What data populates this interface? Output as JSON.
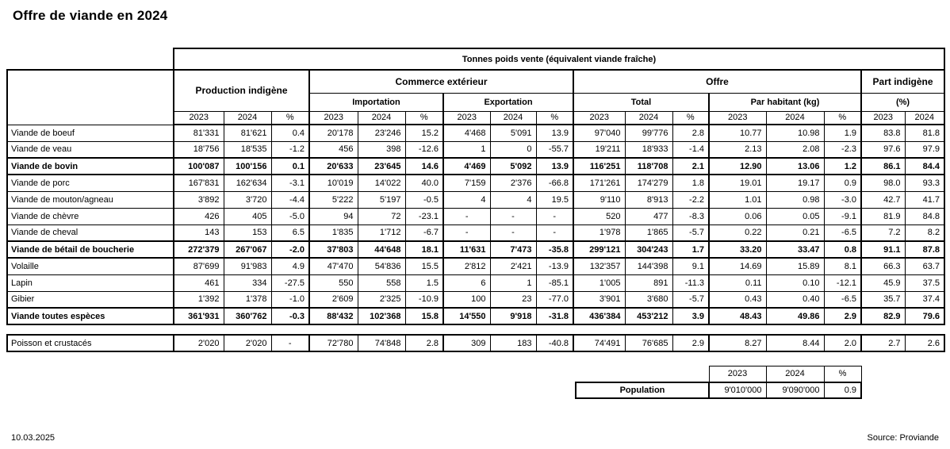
{
  "page": {
    "title": "Offre de viande en 2024",
    "footer_date": "10.03.2025",
    "footer_source": "Source: Proviande"
  },
  "table": {
    "unit_header": "Tonnes poids vente (équivalent viande fraîche)",
    "groups": {
      "production": "Production indigène",
      "commerce": "Commerce extérieur",
      "importation": "Importation",
      "exportation": "Exportation",
      "offre": "Offre",
      "total": "Total",
      "par_habitant": "Par habitant (kg)",
      "part_indigene": "Part indigène",
      "part_unit": "(%)"
    },
    "year_cols": [
      "2023",
      "2024",
      "%"
    ],
    "rows": [
      {
        "label": "Viande de boeuf",
        "bold": false,
        "values": [
          "81'331",
          "81'621",
          "0.4",
          "20'178",
          "23'246",
          "15.2",
          "4'468",
          "5'091",
          "13.9",
          "97'040",
          "99'776",
          "2.8",
          "10.77",
          "10.98",
          "1.9",
          "83.8",
          "81.8"
        ]
      },
      {
        "label": "Viande de veau",
        "bold": false,
        "values": [
          "18'756",
          "18'535",
          "-1.2",
          "456",
          "398",
          "-12.6",
          "1",
          "0",
          "-55.7",
          "19'211",
          "18'933",
          "-1.4",
          "2.13",
          "2.08",
          "-2.3",
          "97.6",
          "97.9"
        ]
      },
      {
        "label": "Viande de bovin",
        "bold": true,
        "values": [
          "100'087",
          "100'156",
          "0.1",
          "20'633",
          "23'645",
          "14.6",
          "4'469",
          "5'092",
          "13.9",
          "116'251",
          "118'708",
          "2.1",
          "12.90",
          "13.06",
          "1.2",
          "86.1",
          "84.4"
        ]
      },
      {
        "label": "Viande de porc",
        "bold": false,
        "values": [
          "167'831",
          "162'634",
          "-3.1",
          "10'019",
          "14'022",
          "40.0",
          "7'159",
          "2'376",
          "-66.8",
          "171'261",
          "174'279",
          "1.8",
          "19.01",
          "19.17",
          "0.9",
          "98.0",
          "93.3"
        ]
      },
      {
        "label": "Viande de mouton/agneau",
        "bold": false,
        "values": [
          "3'892",
          "3'720",
          "-4.4",
          "5'222",
          "5'197",
          "-0.5",
          "4",
          "4",
          "19.5",
          "9'110",
          "8'913",
          "-2.2",
          "1.01",
          "0.98",
          "-3.0",
          "42.7",
          "41.7"
        ]
      },
      {
        "label": "Viande de chèvre",
        "bold": false,
        "values": [
          "426",
          "405",
          "-5.0",
          "94",
          "72",
          "-23.1",
          "-",
          "-",
          "-",
          "520",
          "477",
          "-8.3",
          "0.06",
          "0.05",
          "-9.1",
          "81.9",
          "84.8"
        ]
      },
      {
        "label": "Viande de cheval",
        "bold": false,
        "values": [
          "143",
          "153",
          "6.5",
          "1'835",
          "1'712",
          "-6.7",
          "-",
          "-",
          "-",
          "1'978",
          "1'865",
          "-5.7",
          "0.22",
          "0.21",
          "-6.5",
          "7.2",
          "8.2"
        ]
      },
      {
        "label": "Viande de bétail de boucherie",
        "bold": true,
        "values": [
          "272'379",
          "267'067",
          "-2.0",
          "37'803",
          "44'648",
          "18.1",
          "11'631",
          "7'473",
          "-35.8",
          "299'121",
          "304'243",
          "1.7",
          "33.20",
          "33.47",
          "0.8",
          "91.1",
          "87.8"
        ]
      },
      {
        "label": "Volaille",
        "bold": false,
        "values": [
          "87'699",
          "91'983",
          "4.9",
          "47'470",
          "54'836",
          "15.5",
          "2'812",
          "2'421",
          "-13.9",
          "132'357",
          "144'398",
          "9.1",
          "14.69",
          "15.89",
          "8.1",
          "66.3",
          "63.7"
        ]
      },
      {
        "label": "Lapin",
        "bold": false,
        "values": [
          "461",
          "334",
          "-27.5",
          "550",
          "558",
          "1.5",
          "6",
          "1",
          "-85.1",
          "1'005",
          "891",
          "-11.3",
          "0.11",
          "0.10",
          "-12.1",
          "45.9",
          "37.5"
        ]
      },
      {
        "label": "Gibier",
        "bold": false,
        "values": [
          "1'392",
          "1'378",
          "-1.0",
          "2'609",
          "2'325",
          "-10.9",
          "100",
          "23",
          "-77.0",
          "3'901",
          "3'680",
          "-5.7",
          "0.43",
          "0.40",
          "-6.5",
          "35.7",
          "37.4"
        ]
      },
      {
        "label": "Viande toutes espèces",
        "bold": true,
        "values": [
          "361'931",
          "360'762",
          "-0.3",
          "88'432",
          "102'368",
          "15.8",
          "14'550",
          "9'918",
          "-31.8",
          "436'384",
          "453'212",
          "3.9",
          "48.43",
          "49.86",
          "2.9",
          "82.9",
          "79.6"
        ]
      }
    ]
  },
  "poisson": {
    "label": "Poisson et crustacés",
    "bold": false,
    "values": [
      "2'020",
      "2'020",
      "-",
      "72'780",
      "74'848",
      "2.8",
      "309",
      "183",
      "-40.8",
      "74'491",
      "76'685",
      "2.9",
      "8.27",
      "8.44",
      "2.0",
      "2.7",
      "2.6"
    ]
  },
  "population": {
    "label": "Population",
    "years": [
      "2023",
      "2024",
      "%"
    ],
    "values": [
      "9'010'000",
      "9'090'000",
      "0.9"
    ]
  }
}
